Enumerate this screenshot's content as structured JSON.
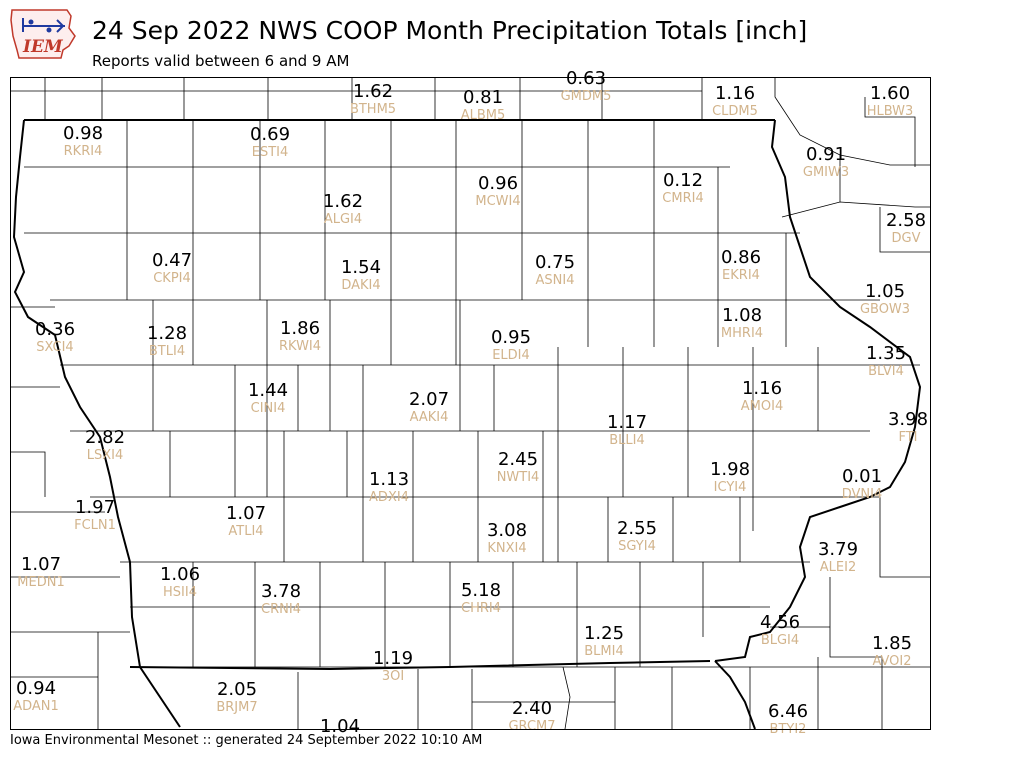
{
  "header": {
    "title": "24 Sep 2022 NWS COOP Month Precipitation Totals [inch]",
    "subtitle": "Reports valid between 6 and 9 AM",
    "logo_text": "IEM"
  },
  "footer": {
    "text": "Iowa Environmental Mesonet :: generated 24 September 2022 10:10 AM"
  },
  "colors": {
    "value_text": "#000000",
    "station_id_text": "#d2b48c",
    "logo_red": "#c0392b",
    "logo_blue": "#1f3aa0"
  },
  "stations": [
    {
      "value": "1.62",
      "id": "BTHM5"
    },
    {
      "value": "0.81",
      "id": "ALBM5"
    },
    {
      "value": "0.63",
      "id": "GMDM5"
    },
    {
      "value": "1.16",
      "id": "CLDM5"
    },
    {
      "value": "1.60",
      "id": "HLBW3"
    },
    {
      "value": "0.98",
      "id": "RKRI4"
    },
    {
      "value": "0.69",
      "id": "ESTI4"
    },
    {
      "value": "0.91",
      "id": "GMIW3"
    },
    {
      "value": "0.96",
      "id": "MCWI4"
    },
    {
      "value": "0.12",
      "id": "CMRI4"
    },
    {
      "value": "1.62",
      "id": "ALGI4"
    },
    {
      "value": "2.58",
      "id": "DGV"
    },
    {
      "value": "0.47",
      "id": "CKPI4"
    },
    {
      "value": "1.54",
      "id": "DAKI4"
    },
    {
      "value": "0.75",
      "id": "ASNI4"
    },
    {
      "value": "0.86",
      "id": "EKRI4"
    },
    {
      "value": "1.05",
      "id": "GBOW3"
    },
    {
      "value": "0.36",
      "id": "SXCI4"
    },
    {
      "value": "1.28",
      "id": "BTLI4"
    },
    {
      "value": "1.86",
      "id": "RKWI4"
    },
    {
      "value": "0.95",
      "id": "ELDI4"
    },
    {
      "value": "1.08",
      "id": "MHRI4"
    },
    {
      "value": "1.35",
      "id": "BLVI4"
    },
    {
      "value": "1.44",
      "id": "CINI4"
    },
    {
      "value": "2.07",
      "id": "AAKI4"
    },
    {
      "value": "1.16",
      "id": "AMOI4"
    },
    {
      "value": "3.98",
      "id": "FTI"
    },
    {
      "value": "2.82",
      "id": "LSXI4"
    },
    {
      "value": "1.17",
      "id": "BLLI4"
    },
    {
      "value": "2.45",
      "id": "NWTI4"
    },
    {
      "value": "1.13",
      "id": "ADXI4"
    },
    {
      "value": "1.98",
      "id": "ICYI4"
    },
    {
      "value": "0.01",
      "id": "DVNI4"
    },
    {
      "value": "1.97",
      "id": "FCLN1"
    },
    {
      "value": "1.07",
      "id": "ATLI4"
    },
    {
      "value": "3.08",
      "id": "KNXI4"
    },
    {
      "value": "2.55",
      "id": "SGYI4"
    },
    {
      "value": "3.79",
      "id": "ALEI2"
    },
    {
      "value": "1.07",
      "id": "MEDN1"
    },
    {
      "value": "1.06",
      "id": "HSII4"
    },
    {
      "value": "3.78",
      "id": "CRNI4"
    },
    {
      "value": "5.18",
      "id": "CHRI4"
    },
    {
      "value": "4.56",
      "id": "BLGI4"
    },
    {
      "value": "1.25",
      "id": "BLMI4"
    },
    {
      "value": "1.85",
      "id": "AVOI2"
    },
    {
      "value": "1.19",
      "id": "3OI"
    },
    {
      "value": "0.94",
      "id": "ADAN1"
    },
    {
      "value": "2.05",
      "id": "BRJM7"
    },
    {
      "value": "2.40",
      "id": "GRCM7"
    },
    {
      "value": "6.46",
      "id": "BTYI2"
    },
    {
      "value": "1.04",
      "id": ""
    }
  ]
}
